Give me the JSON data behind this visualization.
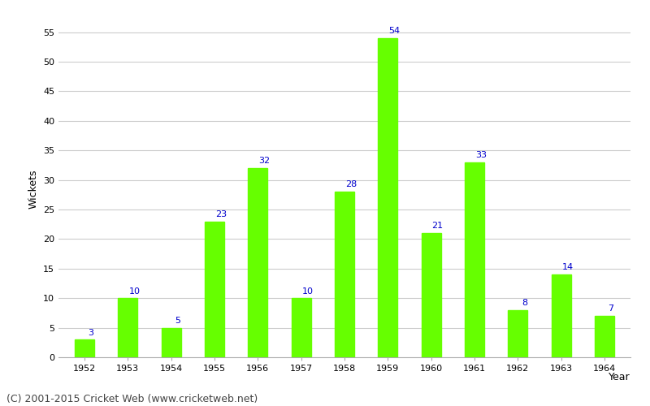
{
  "years": [
    1952,
    1953,
    1954,
    1955,
    1956,
    1957,
    1958,
    1959,
    1960,
    1961,
    1962,
    1963,
    1964
  ],
  "wickets": [
    3,
    10,
    5,
    23,
    32,
    10,
    28,
    54,
    21,
    33,
    8,
    14,
    7
  ],
  "bar_color": "#66ff00",
  "bar_edge_color": "#66ff00",
  "label_color": "#0000cc",
  "label_fontsize": 8,
  "xlabel": "Year",
  "ylabel": "Wickets",
  "ylim": [
    0,
    57
  ],
  "yticks": [
    0,
    5,
    10,
    15,
    20,
    25,
    30,
    35,
    40,
    45,
    50,
    55
  ],
  "grid_color": "#cccccc",
  "background_color": "#ffffff",
  "footer_text": "(C) 2001-2015 Cricket Web (www.cricketweb.net)",
  "footer_fontsize": 9,
  "footer_color": "#444444",
  "axis_label_fontsize": 9,
  "tick_fontsize": 8,
  "bar_width": 0.45
}
